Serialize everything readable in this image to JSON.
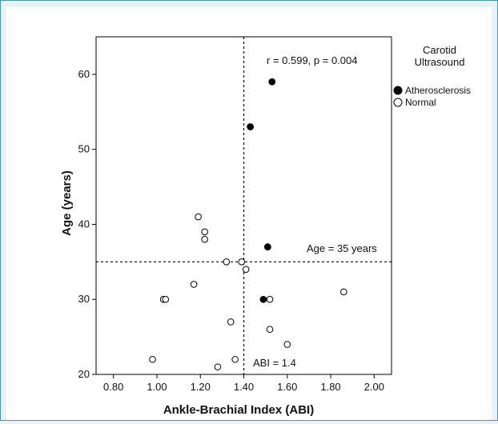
{
  "chart_data": {
    "type": "scatter",
    "xlabel": "Ankle-Brachial Index (ABI)",
    "ylabel": "Age (years)",
    "xlim": [
      0.72,
      2.08
    ],
    "ylim": [
      20,
      65
    ],
    "xticks": [
      0.8,
      1.0,
      1.2,
      1.4,
      1.6,
      1.8,
      2.0
    ],
    "xtick_labels": [
      "0.80",
      "1.00",
      "1.20",
      "1.40",
      "1.60",
      "1.80",
      "2.00"
    ],
    "yticks": [
      20,
      30,
      40,
      50,
      60
    ],
    "ytick_labels": [
      "20",
      "30",
      "40",
      "50",
      "60"
    ],
    "grid": false,
    "legend": {
      "title_line1": "Carotid",
      "title_line2": "Ultrasound",
      "placement": "outside-right",
      "entries": [
        "Atherosclerosis",
        "Normal"
      ]
    },
    "series": [
      {
        "name": "Atherosclerosis",
        "style": "filled",
        "color": "#000000",
        "points": [
          {
            "x": 1.53,
            "y": 59
          },
          {
            "x": 1.43,
            "y": 53
          },
          {
            "x": 1.51,
            "y": 37
          },
          {
            "x": 1.49,
            "y": 30
          }
        ]
      },
      {
        "name": "Normal",
        "style": "open",
        "color": "#000000",
        "points": [
          {
            "x": 1.19,
            "y": 41
          },
          {
            "x": 1.22,
            "y": 39
          },
          {
            "x": 1.22,
            "y": 38
          },
          {
            "x": 1.32,
            "y": 35
          },
          {
            "x": 1.39,
            "y": 35
          },
          {
            "x": 1.41,
            "y": 34
          },
          {
            "x": 1.17,
            "y": 32
          },
          {
            "x": 1.03,
            "y": 30
          },
          {
            "x": 1.04,
            "y": 30
          },
          {
            "x": 1.52,
            "y": 30
          },
          {
            "x": 1.86,
            "y": 31
          },
          {
            "x": 1.34,
            "y": 27
          },
          {
            "x": 1.52,
            "y": 26
          },
          {
            "x": 1.6,
            "y": 24
          },
          {
            "x": 0.98,
            "y": 22
          },
          {
            "x": 1.36,
            "y": 22
          },
          {
            "x": 1.28,
            "y": 21
          }
        ]
      }
    ],
    "reference_lines": [
      {
        "axis": "x",
        "value": 1.4,
        "style": "dashed",
        "label": "ABI = 1.4"
      },
      {
        "axis": "y",
        "value": 35,
        "style": "dashed",
        "label": "Age = 35 years"
      }
    ],
    "annotations": [
      {
        "text": "r = 0.599, p = 0.004"
      }
    ]
  }
}
